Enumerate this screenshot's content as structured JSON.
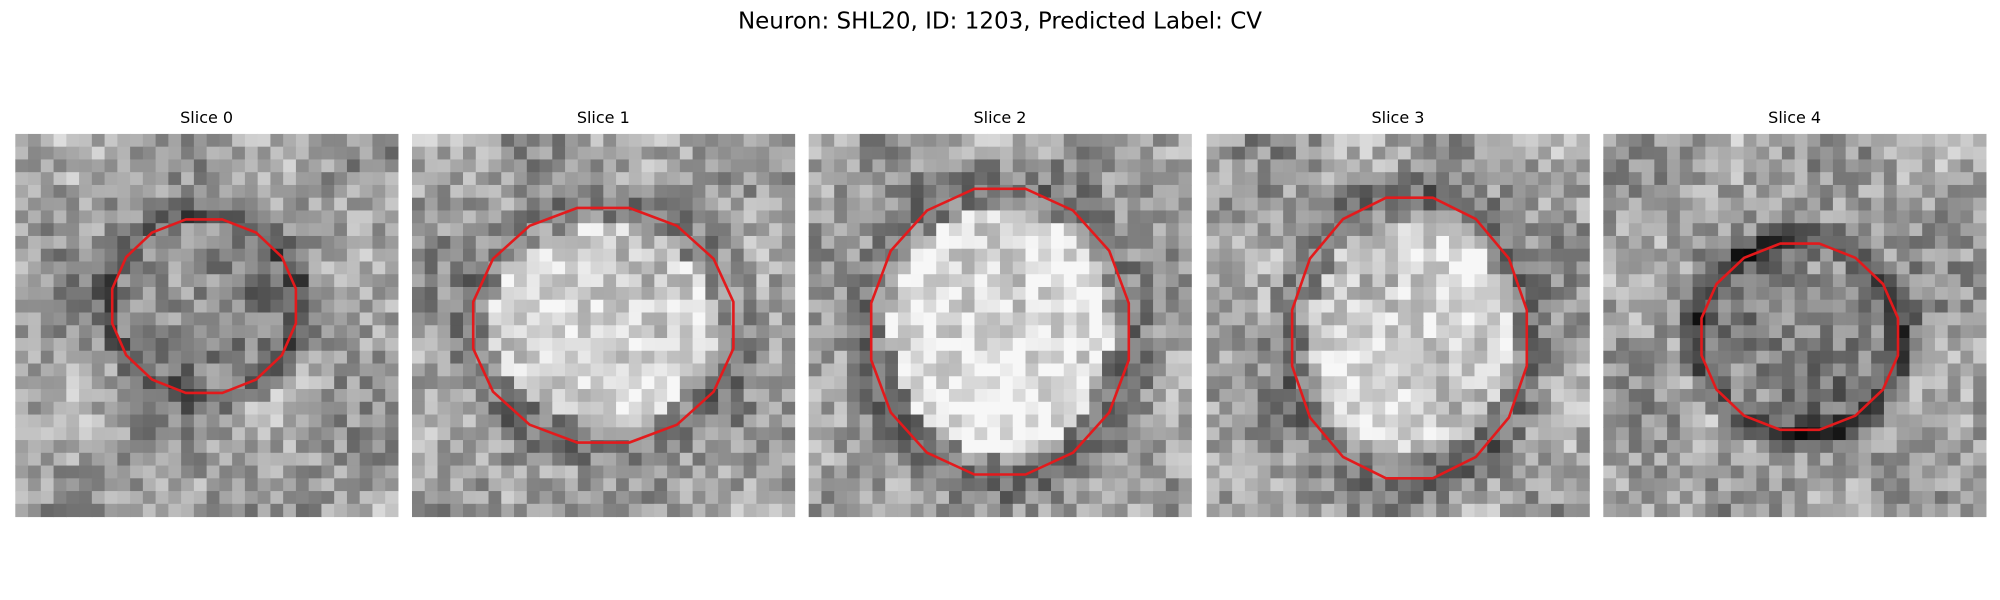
{
  "figure": {
    "title": "Neuron: SHL20, ID: 1203, Predicted Label: CV",
    "panels": [
      {
        "title": "Slice 0"
      },
      {
        "title": "Slice 1"
      },
      {
        "title": "Slice 2"
      },
      {
        "title": "Slice 3"
      },
      {
        "title": "Slice 4"
      }
    ]
  }
}
